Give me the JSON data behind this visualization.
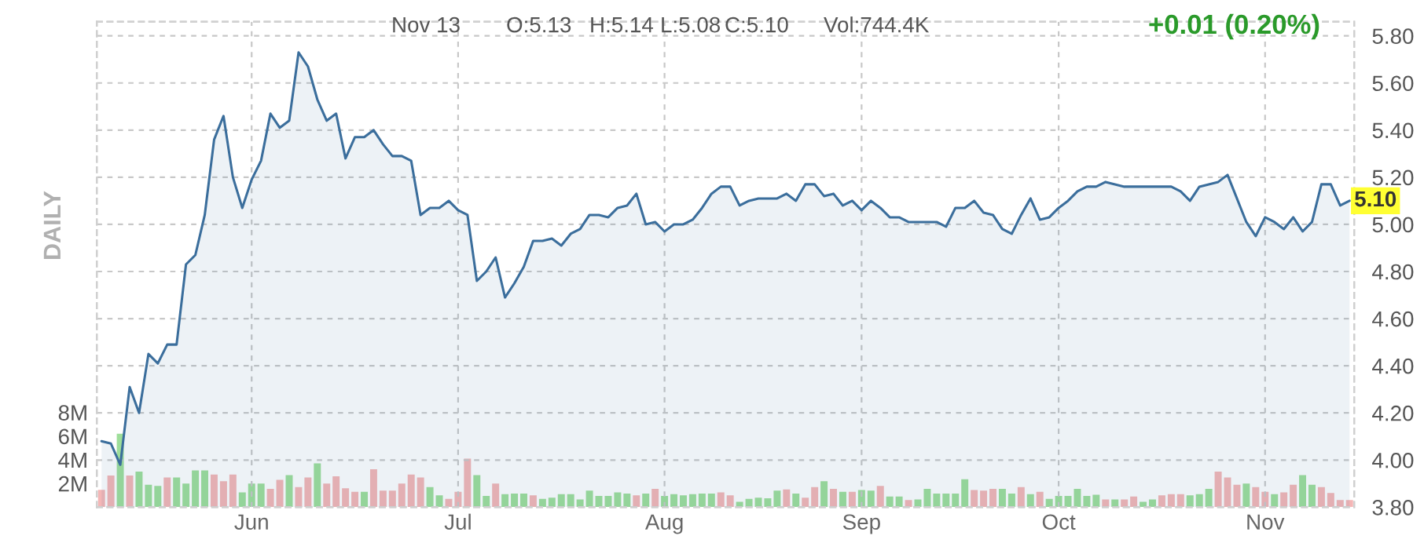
{
  "chart_data": {
    "type": "area",
    "y2label": "DAILY",
    "annotations": [
      "Nov 13",
      "O:5.13",
      "H:5.14",
      "L:5.08",
      "C:5.10",
      "Vol:744.4K",
      "+0.01 (0.20%)",
      {
        "text": "5.10",
        "y": 5.1
      }
    ],
    "categories": [
      null,
      null,
      null,
      null,
      null,
      null,
      null,
      null,
      null,
      null,
      null,
      null,
      null,
      null,
      null,
      null,
      "Jun",
      null,
      null,
      null,
      null,
      null,
      null,
      null,
      null,
      null,
      null,
      null,
      null,
      null,
      null,
      null,
      null,
      null,
      null,
      null,
      null,
      null,
      "Jul",
      null,
      null,
      null,
      null,
      null,
      null,
      null,
      null,
      null,
      null,
      null,
      null,
      null,
      null,
      null,
      null,
      null,
      null,
      null,
      null,
      null,
      "Aug",
      null,
      null,
      null,
      null,
      null,
      null,
      null,
      null,
      null,
      null,
      null,
      null,
      null,
      null,
      null,
      null,
      null,
      null,
      null,
      null,
      "Sep",
      null,
      null,
      null,
      null,
      null,
      null,
      null,
      null,
      null,
      null,
      null,
      null,
      null,
      null,
      null,
      null,
      null,
      null,
      null,
      null,
      "Oct",
      null,
      null,
      null,
      null,
      null,
      null,
      null,
      null,
      null,
      null,
      null,
      null,
      null,
      null,
      null,
      null,
      null,
      null,
      null,
      null,
      null,
      "Nov",
      null,
      null,
      null,
      null,
      null,
      null,
      null,
      null,
      null
    ],
    "series": [
      {
        "color": "#3b6e9c",
        "values": [
          4.08,
          4.07,
          3.98,
          4.31,
          4.2,
          4.45,
          4.41,
          4.49,
          4.49,
          4.83,
          4.87,
          5.04,
          5.36,
          5.46,
          5.2,
          5.07,
          5.19,
          5.27,
          5.47,
          5.41,
          5.44,
          5.73,
          5.67,
          5.53,
          5.44,
          5.47,
          5.28,
          5.37,
          5.37,
          5.4,
          5.34,
          5.29,
          5.29,
          5.27,
          5.04,
          5.07,
          5.07,
          5.1,
          5.06,
          5.04,
          4.76,
          4.8,
          4.86,
          4.69,
          4.75,
          4.82,
          4.93,
          4.93,
          4.94,
          4.91,
          4.96,
          4.98,
          5.04,
          5.04,
          5.03,
          5.07,
          5.08,
          5.13,
          5.0,
          5.01,
          4.97,
          5.0,
          5.0,
          5.02,
          5.07,
          5.13,
          5.16,
          5.16,
          5.08,
          5.1,
          5.11,
          5.11,
          5.11,
          5.13,
          5.1,
          5.17,
          5.17,
          5.12,
          5.13,
          5.08,
          5.1,
          5.06,
          5.1,
          5.07,
          5.03,
          5.03,
          5.01,
          5.01,
          5.01,
          5.01,
          4.99,
          5.07,
          5.07,
          5.1,
          5.05,
          5.04,
          4.98,
          4.96,
          5.04,
          5.11,
          5.02,
          5.03,
          5.07,
          5.1,
          5.14,
          5.16,
          5.16,
          5.18,
          5.17,
          5.16,
          5.16,
          5.16,
          5.16,
          5.16,
          5.16,
          5.14,
          5.1,
          5.16,
          5.17,
          5.18,
          5.21,
          5.11,
          5.01,
          4.95,
          5.03,
          5.01,
          4.98,
          5.03,
          4.97,
          5.01,
          5.17,
          5.17,
          5.08,
          5.1
        ]
      },
      {
        "type": "bar",
        "axis": "y2",
        "values": [
          1.47,
          2.67,
          6.2,
          2.67,
          3.0,
          1.9,
          1.8,
          2.5,
          2.5,
          2.0,
          3.1,
          3.1,
          2.75,
          2.2,
          2.75,
          1.25,
          2.0,
          2.0,
          1.55,
          2.3,
          2.7,
          1.7,
          2.5,
          3.7,
          2.0,
          2.6,
          1.6,
          1.3,
          1.3,
          3.2,
          1.4,
          1.4,
          2.0,
          2.75,
          2.5,
          1.7,
          1.0,
          0.7,
          1.3,
          4.1,
          2.7,
          0.95,
          2.0,
          1.1,
          1.15,
          1.15,
          1.0,
          0.7,
          0.8,
          1.1,
          1.1,
          0.65,
          1.4,
          0.95,
          0.95,
          1.25,
          1.15,
          1.0,
          1.15,
          1.55,
          0.95,
          1.1,
          1.0,
          1.1,
          1.15,
          1.15,
          1.25,
          1.0,
          0.45,
          0.7,
          0.8,
          0.75,
          1.4,
          1.5,
          1.15,
          0.8,
          1.7,
          2.2,
          1.55,
          1.3,
          1.3,
          1.45,
          1.4,
          1.8,
          0.9,
          0.9,
          0.6,
          0.65,
          1.55,
          1.15,
          1.15,
          1.15,
          2.35,
          1.45,
          1.4,
          1.55,
          1.55,
          1.15,
          1.7,
          1.1,
          1.3,
          0.7,
          0.95,
          0.95,
          1.55,
          0.95,
          1.05,
          0.65,
          0.65,
          0.65,
          0.9,
          0.45,
          0.65,
          1.0,
          1.1,
          1.1,
          1.0,
          1.1,
          1.55,
          3.0,
          2.5,
          1.9,
          2.0,
          1.7,
          1.3,
          1.1,
          1.25,
          1.9,
          2.7,
          1.9,
          1.7,
          1.2,
          0.6,
          0.6
        ],
        "colors": [
          "#f4b6b6",
          "#f4b6b6",
          "#9ede9a",
          "#f4b6b6",
          "#9ede9a",
          "#9ede9a",
          "#9ede9a",
          "#f4b6b6",
          "#9ede9a",
          "#9ede9a",
          "#9ede9a",
          "#9ede9a",
          "#f4b6b6",
          "#f4b6b6",
          "#f4b6b6",
          "#9ede9a",
          "#9ede9a",
          "#9ede9a",
          "#f4b6b6",
          "#f4b6b6",
          "#9ede9a",
          "#f4b6b6",
          "#f4b6b6",
          "#9ede9a",
          "#f4b6b6",
          "#f4b6b6",
          "#f4b6b6",
          "#f4b6b6",
          "#9ede9a",
          "#f4b6b6",
          "#f4b6b6",
          "#f4b6b6",
          "#f4b6b6",
          "#f4b6b6",
          "#f4b6b6",
          "#9ede9a",
          "#9ede9a",
          "#f4b6b6",
          "#f4b6b6",
          "#f4b6b6",
          "#9ede9a",
          "#9ede9a",
          "#f4b6b6",
          "#9ede9a",
          "#9ede9a",
          "#9ede9a",
          "#f4b6b6",
          "#9ede9a",
          "#9ede9a",
          "#9ede9a",
          "#9ede9a",
          "#9ede9a",
          "#9ede9a",
          "#9ede9a",
          "#9ede9a",
          "#9ede9a",
          "#9ede9a",
          "#f4b6b6",
          "#9ede9a",
          "#f4b6b6",
          "#9ede9a",
          "#9ede9a",
          "#9ede9a",
          "#9ede9a",
          "#9ede9a",
          "#9ede9a",
          "#f4b6b6",
          "#f4b6b6",
          "#9ede9a",
          "#9ede9a",
          "#9ede9a",
          "#9ede9a",
          "#9ede9a",
          "#f4b6b6",
          "#9ede9a",
          "#f4b6b6",
          "#f4b6b6",
          "#9ede9a",
          "#f4b6b6",
          "#9ede9a",
          "#f4b6b6",
          "#9ede9a",
          "#9ede9a",
          "#f4b6b6",
          "#9ede9a",
          "#9ede9a",
          "#f4b6b6",
          "#9ede9a",
          "#9ede9a",
          "#9ede9a",
          "#9ede9a",
          "#9ede9a",
          "#9ede9a",
          "#f4b6b6",
          "#f4b6b6",
          "#f4b6b6",
          "#9ede9a",
          "#9ede9a",
          "#f4b6b6",
          "#9ede9a",
          "#f4b6b6",
          "#9ede9a",
          "#9ede9a",
          "#9ede9a",
          "#9ede9a",
          "#9ede9a",
          "#9ede9a",
          "#f4b6b6",
          "#9ede9a",
          "#f4b6b6",
          "#f4b6b6",
          "#9ede9a",
          "#9ede9a",
          "#f4b6b6",
          "#f4b6b6",
          "#f4b6b6",
          "#9ede9a",
          "#9ede9a",
          "#9ede9a",
          "#f4b6b6",
          "#f4b6b6",
          "#f4b6b6",
          "#9ede9a",
          "#f4b6b6",
          "#f4b6b6",
          "#9ede9a",
          "#f4b6b6",
          "#f4b6b6",
          "#9ede9a",
          "#9ede9a",
          "#f4b6b6",
          "#f4b6b6",
          "#f4b6b6",
          "#f4b6b6"
        ]
      }
    ],
    "ylim": [
      3.8,
      5.86
    ],
    "yticks": [
      {
        "value": 3.8,
        "label": "3.80"
      },
      {
        "value": 4.0,
        "label": "4.00"
      },
      {
        "value": 4.2,
        "label": "4.20"
      },
      {
        "value": 4.4,
        "label": "4.40"
      },
      {
        "value": 4.6,
        "label": "4.60"
      },
      {
        "value": 4.8,
        "label": "4.80"
      },
      {
        "value": 5.0,
        "label": "5.00"
      },
      {
        "value": 5.2,
        "label": "5.20"
      },
      {
        "value": 5.4,
        "label": "5.40"
      },
      {
        "value": 5.6,
        "label": "5.60"
      },
      {
        "value": 5.8,
        "label": "5.80"
      }
    ],
    "y2lim": [
      0,
      41
    ],
    "y2ticks": [
      {
        "value": 2,
        "label": "2M"
      },
      {
        "value": 4,
        "label": "4M"
      },
      {
        "value": 6,
        "label": "6M"
      },
      {
        "value": 8,
        "label": "8M"
      }
    ],
    "grid": true,
    "marker": "none",
    "line_style": "solid"
  }
}
